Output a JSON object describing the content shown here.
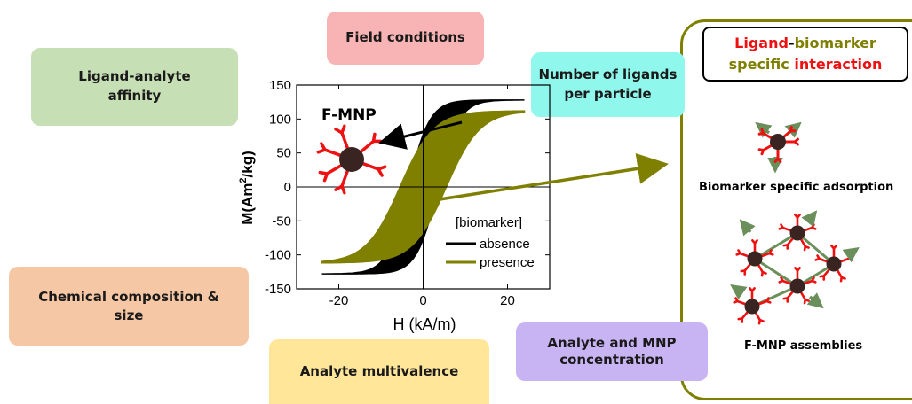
{
  "boxes": {
    "field_conditions": "Field conditions",
    "ligand_affinity_line1": "Ligand-analyte",
    "ligand_affinity_line2": "affinity",
    "ligands_per_particle_line1": "Number of ligands",
    "ligands_per_particle_line2": "per particle",
    "chemical_line1": "Chemical composition &",
    "chemical_line2": "size",
    "multivalence": "Analyte multivalence",
    "concentration_line1": "Analyte and MNP",
    "concentration_line2": "concentration"
  },
  "panel": {
    "title_part1": "Ligand",
    "title_part2": "-",
    "title_part3": "biomarker",
    "title_part4": "specific ",
    "title_part5": "interaction",
    "adsorption_label": "Biomarker specific adsorption",
    "assemblies_label": "F-MNP assemblies"
  },
  "colors": {
    "field_conditions": "#f8b4b4",
    "ligand_affinity": "#c6dfb4",
    "ligands_per_particle": "#8ff7ec",
    "chemical": "#f6c7a4",
    "multivalence": "#ffe699",
    "concentration": "#c8b4f2",
    "panel_border": "#7f7f00",
    "absence": "#000000",
    "presence": "#7f7f00",
    "ligand_red": "#ee1111",
    "particle": "#3a2422",
    "arrow_green": "#6a8f5a"
  },
  "chart_data": {
    "type": "line",
    "inset_label": "F-MNP",
    "xlabel": "H (kA/m)",
    "ylabel_main": "M(Am",
    "ylabel_sup": "2",
    "ylabel_end": "/kg)",
    "xlim": [
      -30,
      30
    ],
    "ylim": [
      -150,
      150
    ],
    "xticks": [
      -20,
      0,
      20
    ],
    "xtick_labels": [
      "-20",
      "0",
      "20"
    ],
    "yticks": [
      -150,
      -100,
      -50,
      0,
      50,
      100,
      150
    ],
    "ytick_labels": [
      "-150",
      "-100",
      "-50",
      "0",
      "50",
      "100",
      "150"
    ],
    "legend_title": "[biomarker]",
    "series": [
      {
        "name": "absence",
        "color": "#000000",
        "ms": 128,
        "hc": 3.5,
        "w": 5.0,
        "hmax": 24
      },
      {
        "name": "presence",
        "color": "#7f7f00",
        "ms": 112,
        "hc": 5.5,
        "w": 8.0,
        "hmax": 24
      }
    ]
  }
}
